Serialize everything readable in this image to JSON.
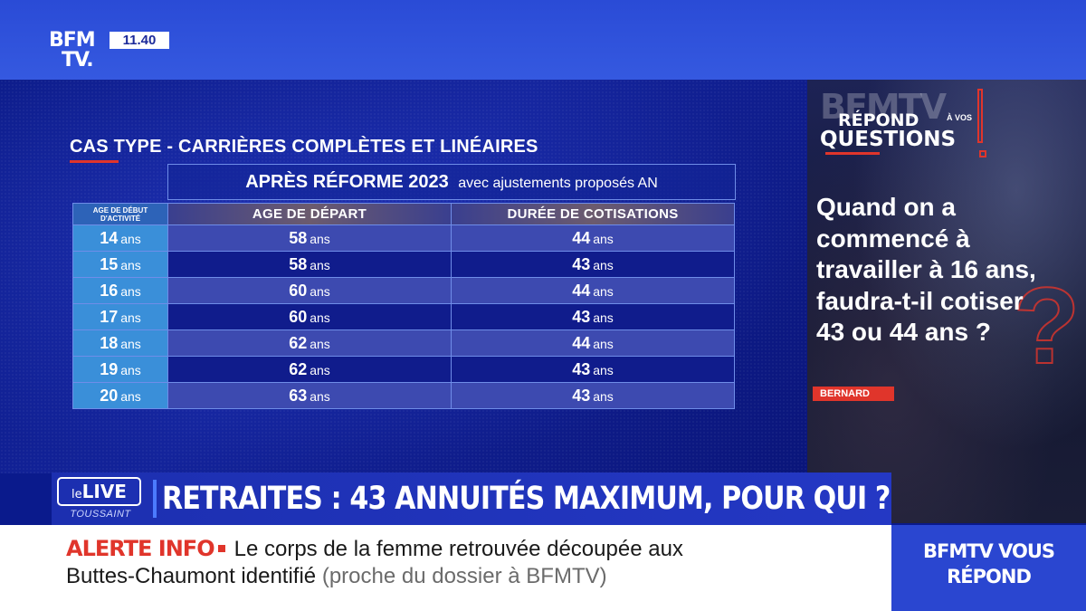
{
  "channel": {
    "logo_top": "BFM",
    "logo_bottom": "TV.",
    "time": "11.40"
  },
  "graphic": {
    "title": "CAS TYPE - CARRIÈRES COMPLÈTES ET LINÉAIRES",
    "header_strong": "APRÈS RÉFORME 2023",
    "header_light": "avec ajustements proposés AN",
    "age_start_header_line1": "AGE DE DÉBUT",
    "age_start_header_line2": "D'ACTIVITÉ",
    "col_departure": "AGE DE DÉPART",
    "col_contrib": "DURÉE DE COTISATIONS",
    "unit": "ans",
    "rows": [
      {
        "start": "14",
        "departure": "58",
        "contrib": "44"
      },
      {
        "start": "15",
        "departure": "58",
        "contrib": "43"
      },
      {
        "start": "16",
        "departure": "60",
        "contrib": "44"
      },
      {
        "start": "17",
        "departure": "60",
        "contrib": "43"
      },
      {
        "start": "18",
        "departure": "62",
        "contrib": "44"
      },
      {
        "start": "19",
        "departure": "62",
        "contrib": "43"
      },
      {
        "start": "20",
        "departure": "63",
        "contrib": "43"
      }
    ]
  },
  "question_panel": {
    "brand_ghost": "BFMTV",
    "repond": "RÉPOND",
    "a_vos_1": "À VOS",
    "questions": "QUESTIONS",
    "question_text": "Quand on a commencé à travailler à 16 ans, faudra-t-il cotiser 43 ou 44 ans ?",
    "question_mark": "?",
    "author": "BERNARD"
  },
  "title_band": {
    "live_le": "le",
    "live": "LIVE",
    "live_sub": "TOUSSAINT",
    "headline": "RETRAITES : 43 ANNUITÉS MAXIMUM, POUR QUI ?"
  },
  "ticker": {
    "alert_label": "ALERTE INFO",
    "line1": "Le corps de la femme retrouvée découpée aux",
    "line2": "Buttes-Chaumont identifié",
    "line2_source": "(proche du dossier à BFMTV)",
    "right_line1": "BFMTV VOUS",
    "right_line2": "RÉPOND"
  },
  "colors": {
    "brand_blue": "#2a46d0",
    "panel_blue": "#0b1a86",
    "cell_light_blue": "#3a8fd9",
    "alert_red": "#e0352b"
  }
}
